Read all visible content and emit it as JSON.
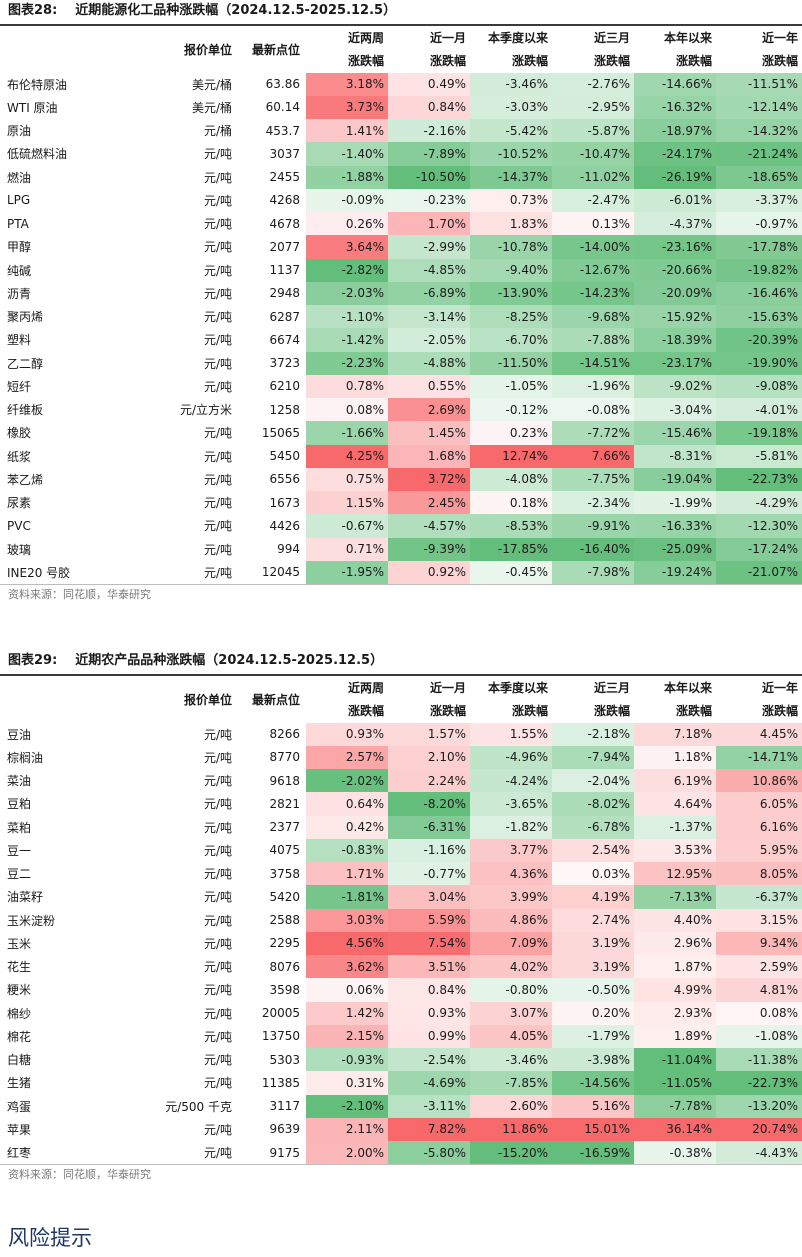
{
  "table1": {
    "label": "图表28:",
    "title": "近期能源化工品种涨跌幅（2024.12.5-2025.12.5）",
    "headers": {
      "unit": "报价单位",
      "points": "最新点位",
      "cols": [
        [
          "近两周",
          "涨跌幅"
        ],
        [
          "近一月",
          "涨跌幅"
        ],
        [
          "本季度以来",
          "涨跌幅"
        ],
        [
          "近三月",
          "涨跌幅"
        ],
        [
          "本年以来",
          "涨跌幅"
        ],
        [
          "近一年",
          "涨跌幅"
        ]
      ]
    },
    "rows": [
      {
        "name": "布伦特原油",
        "unit": "美元/桶",
        "points": "63.86",
        "values": [
          "3.18%",
          "0.49%",
          "-3.46%",
          "-2.76%",
          "-14.66%",
          "-11.51%"
        ]
      },
      {
        "name": "WTI 原油",
        "unit": "美元/桶",
        "points": "60.14",
        "values": [
          "3.73%",
          "0.84%",
          "-3.03%",
          "-2.95%",
          "-16.32%",
          "-12.14%"
        ]
      },
      {
        "name": "原油",
        "unit": "元/桶",
        "points": "453.7",
        "values": [
          "1.41%",
          "-2.16%",
          "-5.42%",
          "-5.87%",
          "-18.97%",
          "-14.32%"
        ]
      },
      {
        "name": "低硫燃料油",
        "unit": "元/吨",
        "points": "3037",
        "values": [
          "-1.40%",
          "-7.89%",
          "-10.52%",
          "-10.47%",
          "-24.17%",
          "-21.24%"
        ]
      },
      {
        "name": "燃油",
        "unit": "元/吨",
        "points": "2455",
        "values": [
          "-1.88%",
          "-10.50%",
          "-14.37%",
          "-11.02%",
          "-26.19%",
          "-18.65%"
        ]
      },
      {
        "name": "LPG",
        "unit": "元/吨",
        "points": "4268",
        "values": [
          "-0.09%",
          "-0.23%",
          "0.73%",
          "-2.47%",
          "-6.01%",
          "-3.37%"
        ]
      },
      {
        "name": "PTA",
        "unit": "元/吨",
        "points": "4678",
        "values": [
          "0.26%",
          "1.70%",
          "1.83%",
          "0.13%",
          "-4.37%",
          "-0.97%"
        ]
      },
      {
        "name": "甲醇",
        "unit": "元/吨",
        "points": "2077",
        "values": [
          "3.64%",
          "-2.99%",
          "-10.78%",
          "-14.00%",
          "-23.16%",
          "-17.78%"
        ]
      },
      {
        "name": "纯碱",
        "unit": "元/吨",
        "points": "1137",
        "values": [
          "-2.82%",
          "-4.85%",
          "-9.40%",
          "-12.67%",
          "-20.66%",
          "-19.82%"
        ]
      },
      {
        "name": "沥青",
        "unit": "元/吨",
        "points": "2948",
        "values": [
          "-2.03%",
          "-6.89%",
          "-13.90%",
          "-14.23%",
          "-20.09%",
          "-16.46%"
        ]
      },
      {
        "name": "聚丙烯",
        "unit": "元/吨",
        "points": "6287",
        "values": [
          "-1.10%",
          "-3.14%",
          "-8.25%",
          "-9.68%",
          "-15.92%",
          "-15.63%"
        ]
      },
      {
        "name": "塑料",
        "unit": "元/吨",
        "points": "6674",
        "values": [
          "-1.42%",
          "-2.05%",
          "-6.70%",
          "-7.88%",
          "-18.39%",
          "-20.39%"
        ]
      },
      {
        "name": "乙二醇",
        "unit": "元/吨",
        "points": "3723",
        "values": [
          "-2.23%",
          "-4.88%",
          "-11.50%",
          "-14.51%",
          "-23.17%",
          "-19.90%"
        ]
      },
      {
        "name": "短纤",
        "unit": "元/吨",
        "points": "6210",
        "values": [
          "0.78%",
          "0.55%",
          "-1.05%",
          "-1.96%",
          "-9.02%",
          "-9.08%"
        ]
      },
      {
        "name": "纤维板",
        "unit": "元/立方米",
        "points": "1258",
        "values": [
          "0.08%",
          "2.69%",
          "-0.12%",
          "-0.08%",
          "-3.04%",
          "-4.01%"
        ]
      },
      {
        "name": "橡胶",
        "unit": "元/吨",
        "points": "15065",
        "values": [
          "-1.66%",
          "1.45%",
          "0.23%",
          "-7.72%",
          "-15.46%",
          "-19.18%"
        ]
      },
      {
        "name": "纸浆",
        "unit": "元/吨",
        "points": "5450",
        "values": [
          "4.25%",
          "1.68%",
          "12.74%",
          "7.66%",
          "-8.31%",
          "-5.81%"
        ]
      },
      {
        "name": "苯乙烯",
        "unit": "元/吨",
        "points": "6556",
        "values": [
          "0.75%",
          "3.72%",
          "-4.08%",
          "-7.75%",
          "-19.04%",
          "-22.73%"
        ]
      },
      {
        "name": "尿素",
        "unit": "元/吨",
        "points": "1673",
        "values": [
          "1.15%",
          "2.45%",
          "0.18%",
          "-2.34%",
          "-1.99%",
          "-4.29%"
        ]
      },
      {
        "name": "PVC",
        "unit": "元/吨",
        "points": "4426",
        "values": [
          "-0.67%",
          "-4.57%",
          "-8.53%",
          "-9.91%",
          "-16.33%",
          "-12.30%"
        ]
      },
      {
        "name": "玻璃",
        "unit": "元/吨",
        "points": "994",
        "values": [
          "0.71%",
          "-9.39%",
          "-17.85%",
          "-16.40%",
          "-25.09%",
          "-17.24%"
        ]
      },
      {
        "name": "INE20 号胶",
        "unit": "元/吨",
        "points": "12045",
        "values": [
          "-1.95%",
          "0.92%",
          "-0.45%",
          "-7.98%",
          "-19.24%",
          "-21.07%"
        ]
      }
    ],
    "source": "资料来源：同花顺，华泰研究"
  },
  "table2": {
    "label": "图表29:",
    "title": "近期农产品品种涨跌幅（2024.12.5-2025.12.5）",
    "headers": {
      "unit": "报价单位",
      "points": "最新点位",
      "cols": [
        [
          "近两周",
          "涨跌幅"
        ],
        [
          "近一月",
          "涨跌幅"
        ],
        [
          "本季度以来",
          "涨跌幅"
        ],
        [
          "近三月",
          "涨跌幅"
        ],
        [
          "本年以来",
          "涨跌幅"
        ],
        [
          "近一年",
          "涨跌幅"
        ]
      ]
    },
    "rows": [
      {
        "name": "豆油",
        "unit": "元/吨",
        "points": "8266",
        "values": [
          "0.93%",
          "1.57%",
          "1.55%",
          "-2.18%",
          "7.18%",
          "4.45%"
        ]
      },
      {
        "name": "棕榈油",
        "unit": "元/吨",
        "points": "8770",
        "values": [
          "2.57%",
          "2.10%",
          "-4.96%",
          "-7.94%",
          "1.18%",
          "-14.71%"
        ]
      },
      {
        "name": "菜油",
        "unit": "元/吨",
        "points": "9618",
        "values": [
          "-2.02%",
          "2.24%",
          "-4.24%",
          "-2.04%",
          "6.19%",
          "10.86%"
        ]
      },
      {
        "name": "豆粕",
        "unit": "元/吨",
        "points": "2821",
        "values": [
          "0.64%",
          "-8.20%",
          "-3.65%",
          "-8.02%",
          "4.64%",
          "6.05%"
        ]
      },
      {
        "name": "菜粕",
        "unit": "元/吨",
        "points": "2377",
        "values": [
          "0.42%",
          "-6.31%",
          "-1.82%",
          "-6.78%",
          "-1.37%",
          "6.16%"
        ]
      },
      {
        "name": "豆一",
        "unit": "元/吨",
        "points": "4075",
        "values": [
          "-0.83%",
          "-1.16%",
          "3.77%",
          "2.54%",
          "3.53%",
          "5.95%"
        ]
      },
      {
        "name": "豆二",
        "unit": "元/吨",
        "points": "3758",
        "values": [
          "1.71%",
          "-0.77%",
          "4.36%",
          "0.03%",
          "12.95%",
          "8.05%"
        ]
      },
      {
        "name": "油菜籽",
        "unit": "元/吨",
        "points": "5420",
        "values": [
          "-1.81%",
          "3.04%",
          "3.99%",
          "4.19%",
          "-7.13%",
          "-6.37%"
        ]
      },
      {
        "name": "玉米淀粉",
        "unit": "元/吨",
        "points": "2588",
        "values": [
          "3.03%",
          "5.59%",
          "4.86%",
          "2.74%",
          "4.40%",
          "3.15%"
        ]
      },
      {
        "name": "玉米",
        "unit": "元/吨",
        "points": "2295",
        "values": [
          "4.56%",
          "7.54%",
          "7.09%",
          "3.19%",
          "2.96%",
          "9.34%"
        ]
      },
      {
        "name": "花生",
        "unit": "元/吨",
        "points": "8076",
        "values": [
          "3.62%",
          "3.51%",
          "4.02%",
          "3.19%",
          "1.87%",
          "2.59%"
        ]
      },
      {
        "name": "粳米",
        "unit": "元/吨",
        "points": "3598",
        "values": [
          "0.06%",
          "0.84%",
          "-0.80%",
          "-0.50%",
          "4.99%",
          "4.81%"
        ]
      },
      {
        "name": "棉纱",
        "unit": "元/吨",
        "points": "20005",
        "values": [
          "1.42%",
          "0.93%",
          "3.07%",
          "0.20%",
          "2.93%",
          "0.08%"
        ]
      },
      {
        "name": "棉花",
        "unit": "元/吨",
        "points": "13750",
        "values": [
          "2.15%",
          "0.99%",
          "4.05%",
          "-1.79%",
          "1.89%",
          "-1.08%"
        ]
      },
      {
        "name": "白糖",
        "unit": "元/吨",
        "points": "5303",
        "values": [
          "-0.93%",
          "-2.54%",
          "-3.46%",
          "-3.98%",
          "-11.04%",
          "-11.38%"
        ]
      },
      {
        "name": "生猪",
        "unit": "元/吨",
        "points": "11385",
        "values": [
          "0.31%",
          "-4.69%",
          "-7.85%",
          "-14.56%",
          "-11.05%",
          "-22.73%"
        ]
      },
      {
        "name": "鸡蛋",
        "unit": "元/500 千克",
        "points": "3117",
        "values": [
          "-2.10%",
          "-3.11%",
          "2.60%",
          "5.16%",
          "-7.78%",
          "-13.20%"
        ]
      },
      {
        "name": "苹果",
        "unit": "元/吨",
        "points": "9639",
        "values": [
          "2.11%",
          "7.82%",
          "11.86%",
          "15.01%",
          "36.14%",
          "20.74%"
        ]
      },
      {
        "name": "红枣",
        "unit": "元/吨",
        "points": "9175",
        "values": [
          "2.00%",
          "-5.80%",
          "-15.20%",
          "-16.59%",
          "-0.38%",
          "-4.43%"
        ]
      }
    ],
    "source": "资料来源：同花顺，华泰研究"
  },
  "risk_heading": "风险提示",
  "colors": {
    "red": "#f8696b",
    "green": "#63be7b",
    "white": "#ffffff"
  }
}
